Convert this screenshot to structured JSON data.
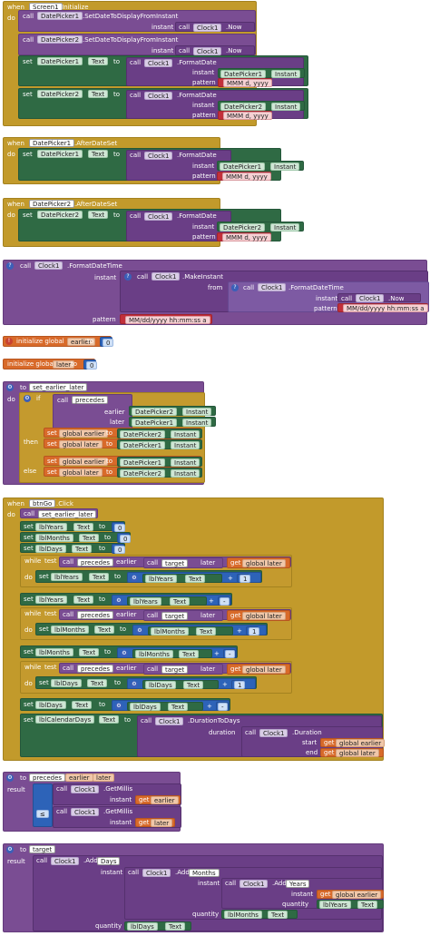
{
  "blocks": {
    "screen_init": {
      "when": "when",
      "component": "Screen1",
      "event": ".Initialize",
      "do": "do",
      "call1": {
        "call": "call",
        "comp": "DatePicker1",
        "method": ".SetDateToDisplayFromInstant",
        "instant": "instant",
        "clock_call": "call",
        "clock": "Clock1",
        "now": ".Now"
      },
      "call2": {
        "call": "call",
        "comp": "DatePicker2",
        "method": ".SetDateToDisplayFromInstant",
        "instant": "instant",
        "clock_call": "call",
        "clock": "Clock1",
        "now": ".Now"
      },
      "set1": {
        "set": "set",
        "comp": "DatePicker1",
        "prop": "Text",
        "to": "to",
        "call": "call",
        "clock": "Clock1",
        "method": ".FormatDate",
        "instant": "instant",
        "dp": "DatePicker1",
        "dp_prop": "Instant",
        "pattern": "pattern",
        "pattern_val": "MMM d, yyyy"
      },
      "set2": {
        "set": "set",
        "comp": "DatePicker2",
        "prop": "Text",
        "to": "to",
        "call": "call",
        "clock": "Clock1",
        "method": ".FormatDate",
        "instant": "instant",
        "dp": "DatePicker2",
        "dp_prop": "Instant",
        "pattern": "pattern",
        "pattern_val": "MMM d, yyyy"
      }
    },
    "dp1_after": {
      "when": "when",
      "component": "DatePicker1",
      "event": ".AfterDateSet",
      "do": "do",
      "set": {
        "set": "set",
        "comp": "DatePicker1",
        "prop": "Text",
        "to": "to",
        "call": "call",
        "clock": "Clock1",
        "method": ".FormatDate",
        "instant": "instant",
        "dp": "DatePicker1",
        "dp_prop": "Instant",
        "pattern": "pattern",
        "pattern_val": "MMM d, yyyy"
      }
    },
    "dp2_after": {
      "when": "when",
      "component": "DatePicker2",
      "event": ".AfterDateSet",
      "do": "do",
      "set": {
        "set": "set",
        "comp": "DatePicker2",
        "prop": "Text",
        "to": "to",
        "call": "call",
        "clock": "Clock1",
        "method": ".FormatDate",
        "instant": "instant",
        "dp": "DatePicker2",
        "dp_prop": "Instant",
        "pattern": "pattern",
        "pattern_val": "MMM d, yyyy"
      }
    },
    "format_datetime": {
      "call": "call",
      "clock": "Clock1",
      "method": ".FormatDateTime",
      "instant": "instant",
      "make_call": "call",
      "make_clock": "Clock1",
      "make_method": ".MakeInstant",
      "from": "from",
      "fdt_call": "call",
      "fdt_clock": "Clock1",
      "fdt_method": ".FormatDateTime",
      "fdt_instant": "instant",
      "now_call": "call",
      "now_clock": "Clock1",
      "now": ".Now",
      "fdt_pattern": "pattern",
      "fdt_pattern_val": "MM/dd/yyyy hh:mm:ss a",
      "pattern": "pattern",
      "pattern_val": "MM/dd/yyyy hh:mm:ss a"
    },
    "global_earlier": {
      "init": "initialize global",
      "name": "earlier",
      "to": "to",
      "value": "0"
    },
    "global_later": {
      "init": "initialize global",
      "name": "later",
      "to": "to",
      "value": "0"
    },
    "set_earlier_later": {
      "to": "to",
      "name": "set_earlier_later",
      "do": "do",
      "if": "if",
      "call": "call",
      "proc": "precedes",
      "earlier": "earlier",
      "later": "later",
      "dp2": "DatePicker2",
      "dp1": "DatePicker1",
      "instant": "Instant",
      "then": "then",
      "else": "else",
      "set": "set",
      "g_earlier": "global earlier",
      "g_later": "global later",
      "to2": "to"
    },
    "btngo": {
      "when": "when",
      "component": "btnGo",
      "event": ".Click",
      "do": "do",
      "call": "call",
      "proc": "set_earlier_later",
      "set": "set",
      "to": "to",
      "text": "Text",
      "lblYears": "lblYears",
      "lblMonths": "lblMonths",
      "lblDays": "lblDays",
      "lblCalendarDays": "lblCalendarDays",
      "zero": "0",
      "one": "1",
      "minus": "-",
      "plus": "+",
      "while": "while",
      "test": "test",
      "call_precedes": "precedes",
      "earlier": "earlier",
      "call_target": "target",
      "later": "later",
      "get": "get",
      "g_later": "global later",
      "g_earlier": "global earlier",
      "clock": "Clock1",
      "duration_days": ".DurationToDays",
      "duration": "duration",
      "duration_method": ".Duration",
      "start": "start",
      "end": "end"
    },
    "precedes": {
      "to": "to",
      "name": "precedes",
      "earlier": "earlier",
      "later": "later",
      "result": "result",
      "call": "call",
      "clock": "Clock1",
      "get_millis": ".GetMillis",
      "instant": "instant",
      "get": "get",
      "op": "≤"
    },
    "target": {
      "to": "to",
      "name": "target",
      "result": "result",
      "call": "call",
      "clock": "Clock1",
      "add_days": ".Add",
      "days": "Days",
      "add_months": ".Add",
      "months": "Months",
      "add_years": ".Add",
      "years": "Years",
      "instant": "instant",
      "quantity": "quantity",
      "get": "get",
      "g_earlier": "global earlier",
      "lblYears": "lblYears",
      "lblMonths": "lblMonths",
      "lblDays": "lblDays",
      "text": "Text"
    }
  }
}
